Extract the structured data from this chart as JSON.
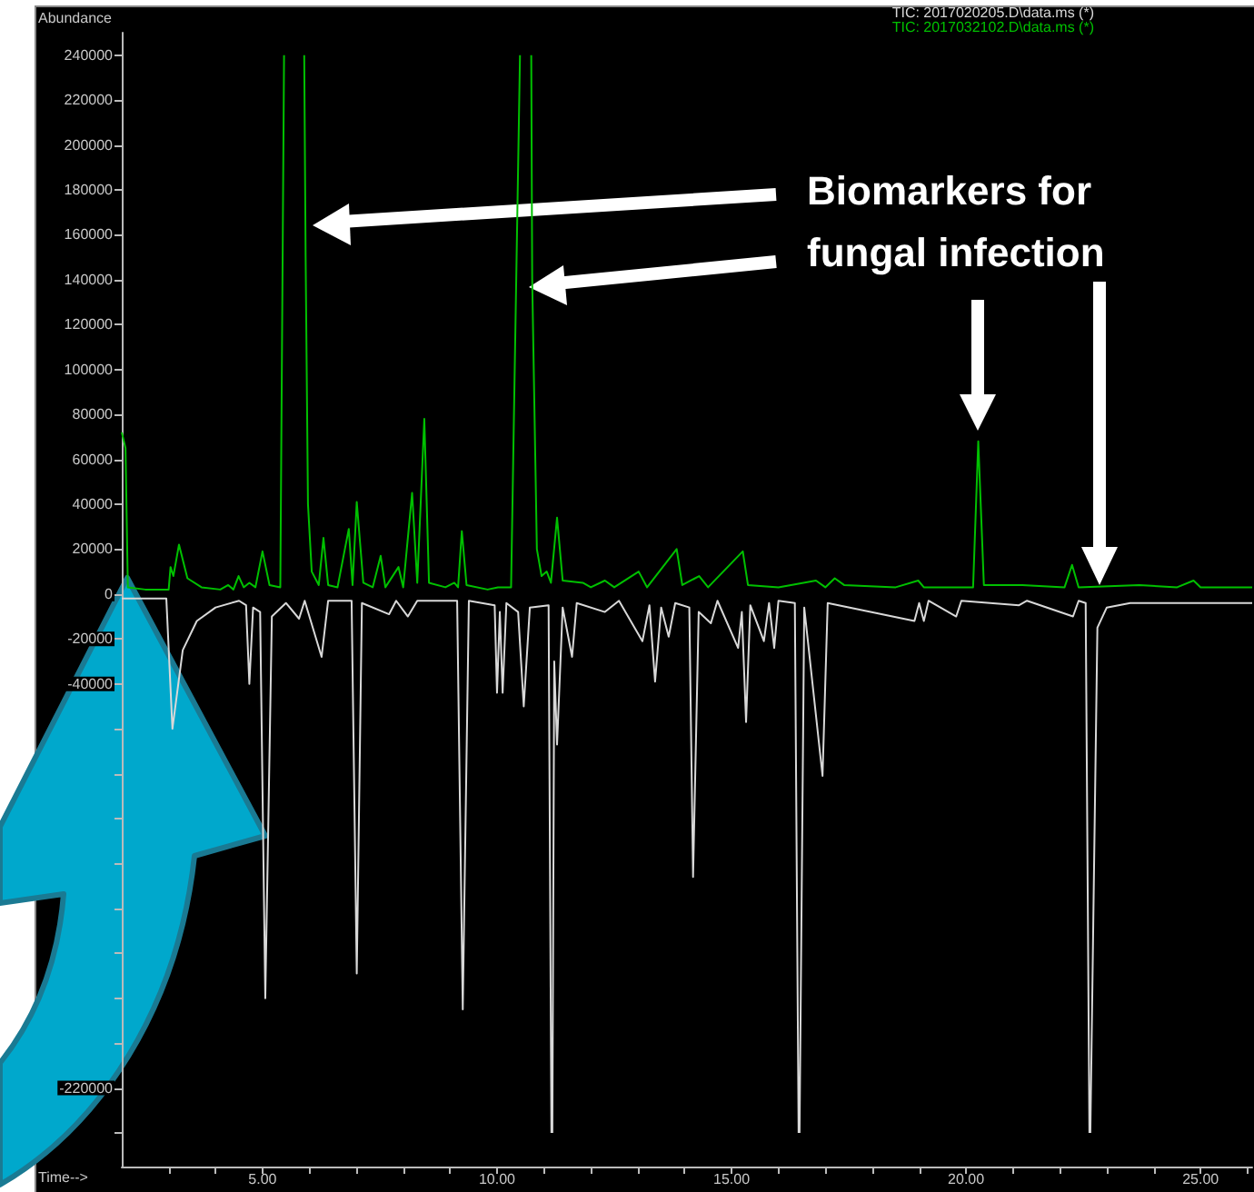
{
  "chart_data": {
    "type": "line",
    "xlabel": "Time-->",
    "ylabel": "Abundance",
    "annotations": [
      "Biomarkers for fungal infection"
    ],
    "xlim": [
      2.0,
      26.1
    ],
    "xticks": [
      {
        "value": 3,
        "label": null
      },
      {
        "value": 4,
        "label": null
      },
      {
        "value": 5,
        "label": "5.00"
      },
      {
        "value": 6,
        "label": null
      },
      {
        "value": 7,
        "label": null
      },
      {
        "value": 8,
        "label": null
      },
      {
        "value": 9,
        "label": null
      },
      {
        "value": 10,
        "label": "10.00"
      },
      {
        "value": 11,
        "label": null
      },
      {
        "value": 12,
        "label": null
      },
      {
        "value": 13,
        "label": null
      },
      {
        "value": 14,
        "label": null
      },
      {
        "value": 15,
        "label": "15.00"
      },
      {
        "value": 16,
        "label": null
      },
      {
        "value": 17,
        "label": null
      },
      {
        "value": 18,
        "label": null
      },
      {
        "value": 19,
        "label": null
      },
      {
        "value": 20,
        "label": "20.00"
      },
      {
        "value": 21,
        "label": null
      },
      {
        "value": 22,
        "label": null
      },
      {
        "value": 23,
        "label": null
      },
      {
        "value": 24,
        "label": null
      },
      {
        "value": 25,
        "label": "25.00"
      },
      {
        "value": 26,
        "label": null
      }
    ],
    "ylim": [
      -255000,
      250000
    ],
    "yticks": [
      {
        "value": -240000,
        "label": null
      },
      {
        "value": -220000,
        "label": "-220000"
      },
      {
        "value": -200000,
        "label": null
      },
      {
        "value": -180000,
        "label": null
      },
      {
        "value": -160000,
        "label": null
      },
      {
        "value": -140000,
        "label": null
      },
      {
        "value": -120000,
        "label": null
      },
      {
        "value": -100000,
        "label": null
      },
      {
        "value": -80000,
        "label": null
      },
      {
        "value": -60000,
        "label": null
      },
      -40000,
      -20000,
      0,
      20000,
      40000,
      60000,
      80000,
      100000,
      120000,
      140000,
      160000,
      180000,
      200000,
      220000,
      240000
    ],
    "legend": "top right",
    "marker": "none",
    "line_style": "solid",
    "series": [
      {
        "name": "TIC: 2017020205.D\\data.ms (*)",
        "color": "#d8d8d8",
        "x": [
          2.0,
          2.95,
          3.08,
          3.3,
          3.6,
          4.0,
          4.5,
          4.65,
          4.72,
          4.8,
          4.95,
          5.06,
          5.2,
          5.5,
          5.78,
          5.9,
          6.26,
          6.4,
          6.9,
          7.01,
          7.12,
          7.7,
          7.85,
          8.1,
          8.3,
          9.15,
          9.27,
          9.4,
          9.95,
          10.0,
          10.06,
          10.12,
          10.2,
          10.45,
          10.57,
          10.7,
          11.1,
          11.16,
          11.17,
          11.18,
          11.22,
          11.28,
          11.4,
          11.6,
          11.7,
          12.3,
          12.6,
          13.1,
          13.25,
          13.37,
          13.5,
          13.66,
          13.8,
          14.1,
          14.18,
          14.3,
          14.56,
          14.7,
          15.14,
          15.22,
          15.31,
          15.4,
          15.69,
          15.8,
          15.91,
          16.0,
          16.35,
          16.43,
          16.44,
          16.45,
          16.55,
          16.94,
          17.05,
          18.9,
          19.0,
          19.1,
          19.2,
          19.79,
          19.9,
          21.13,
          21.3,
          22.28,
          22.4,
          22.55,
          22.63,
          22.64,
          22.65,
          22.8,
          23.0,
          23.5,
          26.1
        ],
        "values": [
          -2000,
          -2000,
          -60000,
          -25000,
          -12000,
          -6000,
          -3000,
          -5000,
          -40000,
          -6000,
          -8000,
          -180000,
          -10000,
          -4000,
          -11000,
          -3000,
          -28000,
          -3000,
          -3000,
          -169000,
          -4000,
          -9000,
          -3000,
          -10000,
          -3000,
          -3000,
          -185000,
          -3000,
          -5000,
          -44000,
          -8000,
          -44000,
          -4000,
          -8000,
          -50000,
          -6000,
          -5000,
          -240000,
          null,
          -240000,
          -30000,
          -67000,
          -6000,
          -28000,
          -4000,
          -8000,
          -3000,
          -21000,
          -5000,
          -39000,
          -6000,
          -19000,
          -4000,
          -6000,
          -126000,
          -8000,
          -13000,
          -3000,
          -24000,
          -8000,
          -57000,
          -5000,
          -21000,
          -4000,
          -24000,
          -3000,
          -4000,
          -240000,
          null,
          -240000,
          -6000,
          -81000,
          -4000,
          -12000,
          -4000,
          -12000,
          -3000,
          -10000,
          -3000,
          -5000,
          -3000,
          -10000,
          -3000,
          -4000,
          -240000,
          null,
          -240000,
          -15000,
          -6000,
          -4000,
          -4000
        ]
      },
      {
        "name": "TIC: 2017032102.D\\data.ms (*)",
        "color": "#00c000",
        "x": [
          2.0,
          2.08,
          2.13,
          2.5,
          3.0,
          3.04,
          3.1,
          3.22,
          3.4,
          3.7,
          4.1,
          4.27,
          4.38,
          4.49,
          4.6,
          4.72,
          4.85,
          5.0,
          5.15,
          5.38,
          5.46,
          5.47,
          5.88,
          5.89,
          5.92,
          5.97,
          6.05,
          6.2,
          6.3,
          6.4,
          6.6,
          6.84,
          6.92,
          7.01,
          7.15,
          7.35,
          7.52,
          7.62,
          7.9,
          8.0,
          8.19,
          8.3,
          8.45,
          8.55,
          8.9,
          9.09,
          9.17,
          9.25,
          9.35,
          9.8,
          10.02,
          10.3,
          10.49,
          10.5,
          10.72,
          10.73,
          10.75,
          10.85,
          10.95,
          11.06,
          11.15,
          11.28,
          11.4,
          11.83,
          12.0,
          12.3,
          12.5,
          13.02,
          13.2,
          13.83,
          13.95,
          14.31,
          14.5,
          15.24,
          15.35,
          16.0,
          16.8,
          17.0,
          17.2,
          17.4,
          18.5,
          18.98,
          19.1,
          20.15,
          20.26,
          20.38,
          21.2,
          22.1,
          22.26,
          22.4,
          23.69,
          24.5,
          24.85,
          25.0,
          26.1
        ],
        "values": [
          72000,
          65000,
          3000,
          2000,
          2000,
          12000,
          8000,
          22000,
          7000,
          3000,
          2000,
          4000,
          2000,
          8000,
          3000,
          5000,
          3000,
          19000,
          4000,
          3000,
          240000,
          null,
          null,
          240000,
          150000,
          40000,
          10000,
          4000,
          25000,
          4000,
          3000,
          29000,
          4000,
          41000,
          5000,
          3000,
          17000,
          3000,
          12000,
          3000,
          45000,
          5000,
          78000,
          5000,
          3000,
          5000,
          3000,
          28000,
          4000,
          2000,
          3000,
          3000,
          240000,
          null,
          null,
          240000,
          140000,
          20000,
          8000,
          10000,
          5000,
          34000,
          6000,
          5000,
          3000,
          6000,
          3000,
          10000,
          3000,
          20000,
          4000,
          8000,
          3000,
          19000,
          4000,
          3000,
          6000,
          3000,
          7000,
          4000,
          3000,
          6000,
          3000,
          3000,
          68000,
          4000,
          4000,
          3000,
          13000,
          3000,
          4000,
          3000,
          6000,
          3000,
          3000
        ]
      }
    ]
  }
}
